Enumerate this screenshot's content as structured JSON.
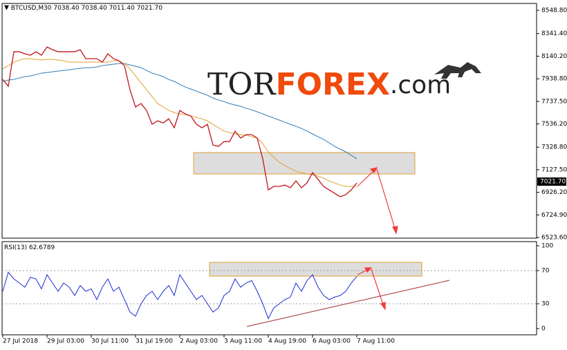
{
  "chart_data": [
    {
      "type": "line",
      "symbol": "BTCUSD,M30",
      "ohlc": [
        "7038.40",
        "7038.40",
        "7011.40",
        "7021.70"
      ],
      "watermark": [
        "TOR",
        "FOREX",
        ".com"
      ],
      "ylim": [
        6517.5,
        8610.4
      ],
      "yticks": [
        {
          "value": 8548.8,
          "label": "8548.80"
        },
        {
          "value": 8341.4,
          "label": "8341.40"
        },
        {
          "value": 8140.2,
          "label": "8140.20"
        },
        {
          "value": 7938.8,
          "label": "7938.80"
        },
        {
          "value": 7737.5,
          "label": "7737.50"
        },
        {
          "value": 7536.2,
          "label": "7536.20"
        },
        {
          "value": 7328.8,
          "label": "7328.80"
        },
        {
          "value": 7127.5,
          "label": "7127.50"
        },
        {
          "value": 6926.2,
          "label": "6926.20"
        },
        {
          "value": 6724.9,
          "label": "6724.90"
        },
        {
          "value": 6523.6,
          "label": "6523.60"
        }
      ],
      "last_price": {
        "value": 7021.7,
        "label": "7021.70"
      },
      "series": [
        {
          "color": "#2a7ab8",
          "values": [
            7915,
            7927,
            7933,
            7946,
            7958,
            7964,
            7976,
            7989,
            7995,
            8001,
            8007,
            8013,
            8019,
            8026,
            8032,
            8038,
            8038,
            8044,
            8056,
            8062,
            8069,
            8075,
            8075,
            8062,
            8050,
            8038,
            8013,
            7989,
            7976,
            7958,
            7933,
            7915,
            7890,
            7865,
            7847,
            7829,
            7810,
            7792,
            7767,
            7749,
            7736,
            7718,
            7705,
            7693,
            7675,
            7662,
            7644,
            7625,
            7607,
            7588,
            7570,
            7552,
            7533,
            7515,
            7496,
            7472,
            7447,
            7422,
            7398,
            7367,
            7336,
            7311,
            7287,
            7256,
            7225
          ]
        },
        {
          "color": "#e0a030",
          "values": [
            8026,
            8056,
            8087,
            8106,
            8118,
            8118,
            8112,
            8106,
            8112,
            8112,
            8106,
            8099,
            8087,
            8087,
            8087,
            8087,
            8087,
            8087,
            8087,
            8087,
            8099,
            8099,
            8075,
            8026,
            7964,
            7902,
            7841,
            7779,
            7718,
            7687,
            7656,
            7638,
            7625,
            7619,
            7607,
            7595,
            7582,
            7564,
            7533,
            7502,
            7472,
            7459,
            7447,
            7441,
            7435,
            7422,
            7410,
            7361,
            7287,
            7238,
            7194,
            7164,
            7139,
            7114,
            7102,
            7090,
            7084,
            7071,
            7053,
            7028,
            7010,
            6991,
            6979,
            6979,
            6979
          ]
        },
        {
          "color": "#c0141c",
          "values": [
            7933,
            7872,
            8180,
            8180,
            8161,
            8149,
            8180,
            8149,
            8222,
            8198,
            8180,
            8180,
            8180,
            8180,
            8198,
            8118,
            8118,
            8118,
            8087,
            8161,
            8118,
            8099,
            8056,
            7841,
            7687,
            7718,
            7656,
            7533,
            7564,
            7545,
            7582,
            7502,
            7656,
            7625,
            7607,
            7533,
            7502,
            7533,
            7348,
            7336,
            7379,
            7379,
            7471,
            7410,
            7441,
            7441,
            7410,
            7225,
            6948,
            6979,
            6979,
            6991,
            6967,
            7028,
            6967,
            7010,
            7102,
            7041,
            6979,
            6948,
            6917,
            6887,
            6905,
            6948,
            7010
          ]
        }
      ]
    },
    {
      "type": "line",
      "label": "RSI(13)",
      "current": 62.6789,
      "ylim": [
        -7.5,
        105
      ],
      "yticks": [
        100,
        70,
        30,
        0
      ],
      "categories": [
        "27 Jul 2018",
        null,
        null,
        null,
        null,
        null,
        null,
        null,
        "29 Jul 03:00",
        null,
        null,
        null,
        null,
        null,
        null,
        null,
        "30 Jul 11:00",
        null,
        null,
        null,
        null,
        null,
        null,
        null,
        "31 Jul 19:00",
        null,
        null,
        null,
        null,
        null,
        null,
        null,
        "2 Aug 03:00",
        null,
        null,
        null,
        null,
        null,
        null,
        null,
        "3 Aug 11:00",
        null,
        null,
        null,
        null,
        null,
        null,
        null,
        "4 Aug 19:00",
        null,
        null,
        null,
        null,
        null,
        null,
        null,
        "6 Aug 03:00",
        null,
        null,
        null,
        null,
        null,
        null,
        null,
        "7 Aug 11:00"
      ],
      "series": [
        {
          "color": "#1a2bd0",
          "values": [
            45,
            68,
            60,
            55,
            50,
            62,
            60,
            48,
            65,
            55,
            45,
            55,
            50,
            40,
            52,
            45,
            48,
            35,
            50,
            60,
            45,
            50,
            35,
            20,
            15,
            30,
            40,
            45,
            35,
            45,
            52,
            40,
            65,
            55,
            45,
            35,
            40,
            30,
            20,
            25,
            40,
            45,
            60,
            50,
            55,
            58,
            45,
            30,
            12,
            25,
            30,
            35,
            38,
            55,
            45,
            58,
            65,
            50,
            40,
            35,
            38,
            40,
            45,
            55,
            63
          ]
        }
      ]
    }
  ]
}
